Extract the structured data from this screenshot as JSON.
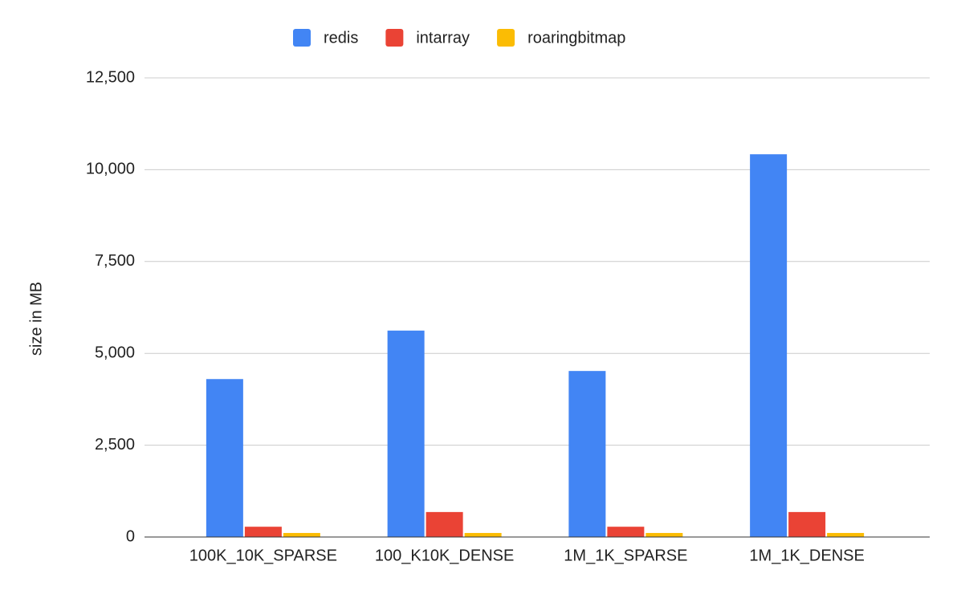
{
  "chart_data": {
    "type": "bar",
    "y_label": "size in MB",
    "categories": [
      "100K_10K_SPARSE",
      "100_K10K_DENSE",
      "1M_1K_SPARSE",
      "1M_1K_DENSE"
    ],
    "series": [
      {
        "name": "redis",
        "color": "#4285f4",
        "values": [
          4300,
          5620,
          4520,
          10420
        ]
      },
      {
        "name": "intarray",
        "color": "#ea4335",
        "values": [
          280,
          680,
          280,
          680
        ]
      },
      {
        "name": "roaringbitmap",
        "color": "#fbbc04",
        "values": [
          110,
          110,
          110,
          110
        ]
      }
    ],
    "ylim": [
      0,
      12500
    ],
    "yticks": [
      0,
      {
        "value": 2500,
        "label": "2,500"
      },
      {
        "value": 5000,
        "label": "5,000"
      },
      {
        "value": 7500,
        "label": "7,500"
      },
      {
        "value": 10000,
        "label": "10,000"
      },
      {
        "value": 12500,
        "label": "12,500"
      }
    ],
    "grid": true,
    "legend": "top"
  }
}
